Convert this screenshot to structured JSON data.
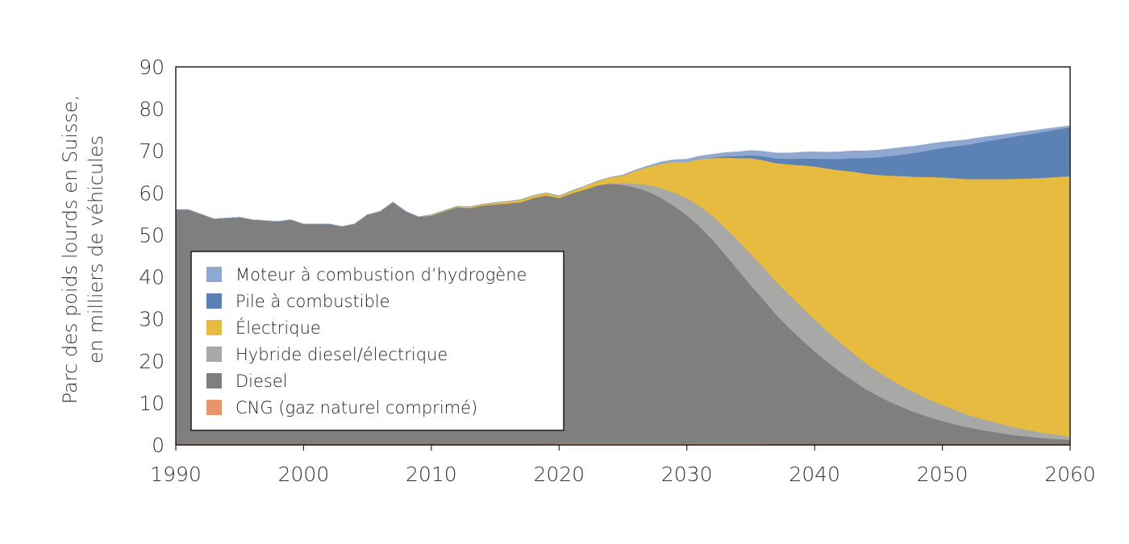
{
  "chart_data": {
    "type": "area",
    "stacked": true,
    "title": "",
    "xlabel": "",
    "ylabel_lines": [
      "Parc des poids lourds en Suisse,",
      "en milliers de véhicules"
    ],
    "xlim": [
      1990,
      2060
    ],
    "ylim": [
      0,
      90
    ],
    "x_ticks": [
      1990,
      2000,
      2010,
      2020,
      2030,
      2040,
      2050,
      2060
    ],
    "y_ticks": [
      0,
      10,
      20,
      30,
      40,
      50,
      60,
      70,
      80,
      90
    ],
    "legend_position": "lower-left",
    "x": [
      1990,
      1991,
      1993,
      1995,
      1996,
      1998,
      1999,
      2000,
      2002,
      2003,
      2004,
      2005,
      2006,
      2007,
      2008,
      2009,
      2010,
      2011,
      2012,
      2013,
      2014,
      2015,
      2016,
      2017,
      2018,
      2019,
      2020,
      2021,
      2022,
      2023,
      2024,
      2025,
      2026,
      2027,
      2028,
      2029,
      2030,
      2031,
      2032,
      2033,
      2034,
      2035,
      2036,
      2037,
      2038,
      2039,
      2040,
      2041,
      2042,
      2043,
      2044,
      2045,
      2046,
      2047,
      2048,
      2049,
      2050,
      2051,
      2052,
      2053,
      2054,
      2055,
      2056,
      2057,
      2058,
      2059,
      2060
    ],
    "series": [
      {
        "name": "CNG (gaz naturel comprimé)",
        "color": "#e8956b",
        "values": [
          0,
          0,
          0,
          0,
          0,
          0,
          0,
          0,
          0,
          0,
          0,
          0,
          0,
          0,
          0,
          0,
          0,
          0,
          0,
          0,
          0,
          0,
          0,
          0,
          0,
          0.2,
          0.3,
          0.3,
          0.3,
          0.3,
          0.3,
          0.3,
          0.3,
          0.3,
          0.3,
          0.3,
          0.3,
          0.3,
          0.3,
          0.3,
          0.3,
          0.3,
          0.3,
          0,
          0,
          0,
          0,
          0,
          0,
          0,
          0,
          0,
          0,
          0,
          0,
          0,
          0,
          0,
          0,
          0,
          0,
          0,
          0,
          0,
          0,
          0,
          0
        ]
      },
      {
        "name": "Diesel",
        "color": "#7f7f7f",
        "values": [
          56,
          56,
          53.8,
          54.2,
          53.6,
          53.2,
          53.6,
          52.6,
          52.6,
          52,
          52.6,
          54.8,
          55.6,
          57.8,
          55.6,
          54.3,
          54.6,
          55.6,
          56.6,
          56.4,
          57,
          57.3,
          57.5,
          57.8,
          58.8,
          59.2,
          58.5,
          59.6,
          60.5,
          61.5,
          61.9,
          61.6,
          61,
          60,
          58.5,
          56.6,
          54.4,
          51.7,
          48.6,
          45.1,
          41.4,
          37.8,
          34.3,
          31,
          27.9,
          25,
          22.3,
          19.8,
          17.4,
          15.3,
          13.3,
          11.6,
          10.1,
          8.8,
          7.6,
          6.6,
          5.7,
          4.9,
          4.2,
          3.6,
          3.1,
          2.6,
          2.2,
          1.9,
          1.6,
          1.4,
          1.2
        ]
      },
      {
        "name": "Hybride diesel/électrique",
        "color": "#a8a8a7",
        "values": [
          0,
          0,
          0,
          0,
          0,
          0,
          0,
          0,
          0,
          0,
          0,
          0,
          0,
          0,
          0,
          0,
          0,
          0,
          0,
          0,
          0,
          0,
          0,
          0,
          0,
          0,
          0,
          0,
          0,
          0,
          0.1,
          0.4,
          0.9,
          1.6,
          2.4,
          3.2,
          4.1,
          4.9,
          5.7,
          6.4,
          7,
          7.4,
          7.7,
          7.9,
          7.9,
          7.8,
          7.6,
          7.3,
          7,
          6.6,
          6.2,
          5.8,
          5.4,
          5,
          4.6,
          4.2,
          3.8,
          3.4,
          3,
          2.7,
          2.4,
          2.1,
          1.8,
          1.5,
          1.2,
          1,
          0.8
        ]
      },
      {
        "name": "Électrique",
        "color": "#e6bb40",
        "values": [
          0,
          0,
          0,
          0,
          0,
          0,
          0,
          0,
          0,
          0,
          0,
          0,
          0,
          0,
          0,
          0,
          0.2,
          0.2,
          0.2,
          0.3,
          0.3,
          0.4,
          0.5,
          0.6,
          0.6,
          0.6,
          0.5,
          0.6,
          0.8,
          1,
          1.4,
          1.9,
          3.1,
          4.3,
          5.8,
          7.3,
          8.6,
          11.2,
          13.7,
          16.6,
          19.6,
          22.8,
          25.5,
          28.2,
          31,
          33.8,
          36.4,
          38.7,
          41,
          43.2,
          45.1,
          46.9,
          48.6,
          50.2,
          51.6,
          53,
          54.2,
          55.2,
          56.1,
          57,
          57.8,
          58.6,
          59.4,
          60.1,
          60.8,
          61.4,
          62
        ]
      },
      {
        "name": "Pile à combustible",
        "color": "#5b81b5",
        "values": [
          0,
          0,
          0,
          0,
          0,
          0,
          0,
          0,
          0,
          0,
          0,
          0,
          0,
          0,
          0,
          0,
          0,
          0,
          0,
          0,
          0,
          0,
          0,
          0,
          0,
          0,
          0,
          0,
          0,
          0,
          0,
          0,
          0,
          0,
          0,
          0,
          0,
          0,
          0.1,
          0.3,
          0.5,
          0.7,
          0.9,
          1.1,
          1.3,
          1.6,
          1.9,
          2.3,
          2.7,
          3.2,
          3.7,
          4.2,
          4.7,
          5.2,
          5.8,
          6.4,
          7,
          7.6,
          8.2,
          8.8,
          9.3,
          9.8,
          10.2,
          10.6,
          11,
          11.3,
          11.6
        ]
      },
      {
        "name": "Moteur à combustion d’hydrogène",
        "color": "#8fa8d2",
        "values": [
          0,
          0,
          0,
          0,
          0,
          0,
          0,
          0,
          0,
          0,
          0,
          0,
          0,
          0,
          0,
          0,
          0,
          0,
          0,
          0,
          0,
          0,
          0,
          0,
          0,
          0,
          0,
          0,
          0,
          0,
          0,
          0.1,
          0.2,
          0.3,
          0.4,
          0.5,
          0.6,
          0.7,
          0.8,
          0.9,
          1,
          1.1,
          1.2,
          1.3,
          1.4,
          1.5,
          1.6,
          1.6,
          1.7,
          1.7,
          1.7,
          1.7,
          1.7,
          1.7,
          1.6,
          1.5,
          1.4,
          1.3,
          1.2,
          1.1,
          1,
          0.9,
          0.8,
          0.7,
          0.6,
          0.5,
          0.4
        ]
      }
    ],
    "legend": [
      {
        "label": "Moteur à combustion d’hydrogène",
        "color": "#8fa8d2"
      },
      {
        "label": "Pile à combustible",
        "color": "#5b81b5"
      },
      {
        "label": "Électrique",
        "color": "#e6bb40"
      },
      {
        "label": "Hybride diesel/électrique",
        "color": "#a8a8a7"
      },
      {
        "label": "Diesel",
        "color": "#7f7f7f"
      },
      {
        "label": "CNG (gaz naturel comprimé)",
        "color": "#e8956b"
      }
    ]
  }
}
